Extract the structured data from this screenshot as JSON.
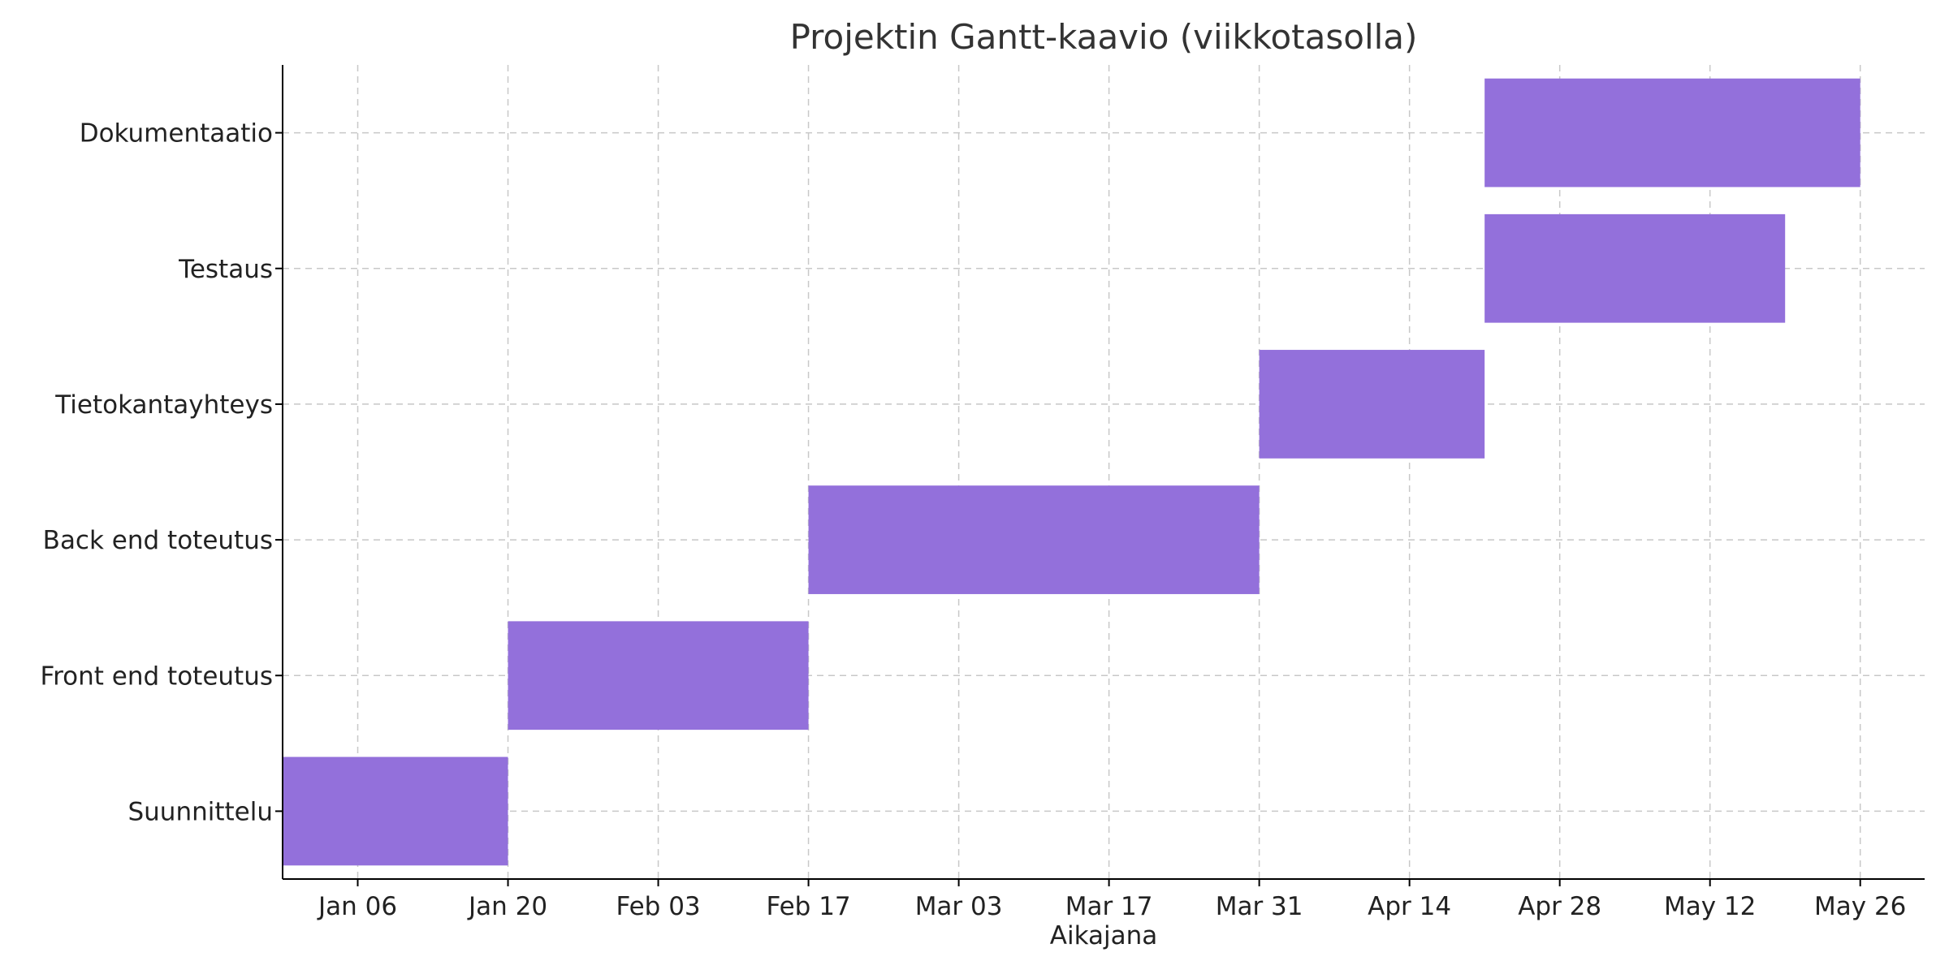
{
  "chart_data": {
    "type": "gantt",
    "title": "Projektin Gantt-kaavio (viikkotasolla)",
    "xlabel": "Aikajana",
    "ylabel": "",
    "x_ticks": [
      "Jan 06",
      "Jan 20",
      "Feb 03",
      "Feb 17",
      "Mar 03",
      "Mar 17",
      "Mar 31",
      "Apr 14",
      "Apr 28",
      "May 12",
      "May 26"
    ],
    "x_tick_dates": [
      "2025-01-06",
      "2025-01-20",
      "2025-02-03",
      "2025-02-17",
      "2025-03-03",
      "2025-03-17",
      "2025-03-31",
      "2025-04-14",
      "2025-04-28",
      "2025-05-12",
      "2025-05-26"
    ],
    "xlim": [
      "2024-12-30",
      "2025-06-01"
    ],
    "bar_color": "#9370DB",
    "grid": true,
    "tasks": [
      {
        "name": "Suunnittelu",
        "start": "2024-12-30",
        "end": "2025-01-20"
      },
      {
        "name": "Front end toteutus",
        "start": "2025-01-20",
        "end": "2025-02-17"
      },
      {
        "name": "Back end toteutus",
        "start": "2025-02-17",
        "end": "2025-03-31"
      },
      {
        "name": "Tietokantayhteys",
        "start": "2025-03-31",
        "end": "2025-04-21"
      },
      {
        "name": "Testaus",
        "start": "2025-04-21",
        "end": "2025-05-19"
      },
      {
        "name": "Dokumentaatio",
        "start": "2025-04-21",
        "end": "2025-05-26"
      }
    ]
  }
}
